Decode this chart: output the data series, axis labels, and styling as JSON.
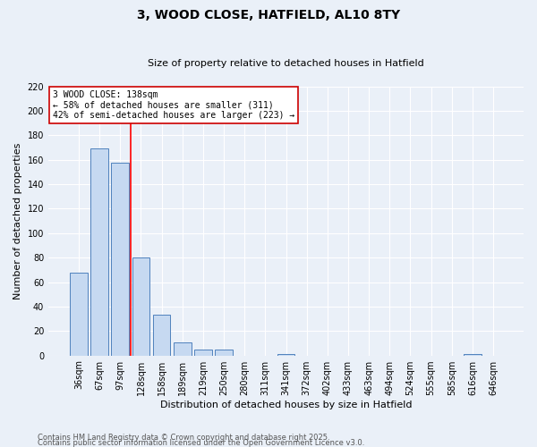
{
  "title": "3, WOOD CLOSE, HATFIELD, AL10 8TY",
  "subtitle": "Size of property relative to detached houses in Hatfield",
  "xlabel": "Distribution of detached houses by size in Hatfield",
  "ylabel": "Number of detached properties",
  "footnote1": "Contains HM Land Registry data © Crown copyright and database right 2025.",
  "footnote2": "Contains public sector information licensed under the Open Government Licence v3.0.",
  "categories": [
    "36sqm",
    "67sqm",
    "97sqm",
    "128sqm",
    "158sqm",
    "189sqm",
    "219sqm",
    "250sqm",
    "280sqm",
    "311sqm",
    "341sqm",
    "372sqm",
    "402sqm",
    "433sqm",
    "463sqm",
    "494sqm",
    "524sqm",
    "555sqm",
    "585sqm",
    "616sqm",
    "646sqm"
  ],
  "values": [
    68,
    169,
    158,
    80,
    33,
    11,
    5,
    5,
    0,
    0,
    1,
    0,
    0,
    0,
    0,
    0,
    0,
    0,
    0,
    1,
    0
  ],
  "bar_color": "#c6d9f1",
  "bar_edge_color": "#4f81bd",
  "ylim": [
    0,
    220
  ],
  "yticks": [
    0,
    20,
    40,
    60,
    80,
    100,
    120,
    140,
    160,
    180,
    200,
    220
  ],
  "property_label": "3 WOOD CLOSE: 138sqm",
  "annotation_line1": "← 58% of detached houses are smaller (311)",
  "annotation_line2": "42% of semi-detached houses are larger (223) →",
  "vline_x": 2.5,
  "background_color": "#eaf0f8",
  "grid_color": "#ffffff",
  "annotation_box_color": "#ffffff",
  "annotation_box_edge": "#cc0000",
  "title_fontsize": 10,
  "subtitle_fontsize": 8,
  "ylabel_fontsize": 8,
  "xlabel_fontsize": 8,
  "tick_fontsize": 7,
  "annotation_fontsize": 7,
  "footnote_fontsize": 6
}
